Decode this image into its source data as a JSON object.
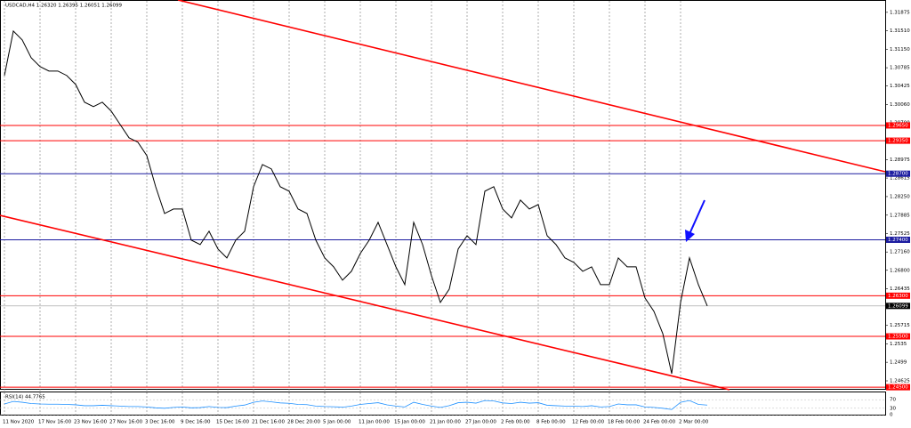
{
  "chart_data": {
    "type": "line",
    "title": "USDCAD,H4  1.26320 1.26395 1.26051 1.26099",
    "categories": [
      "11 Nov 2020",
      null,
      null,
      null,
      "17 Nov 16:00",
      null,
      null,
      null,
      "23 Nov 16:00",
      null,
      null,
      null,
      "27 Nov 16:00",
      null,
      null,
      null,
      "3 Dec 16:00",
      null,
      null,
      null,
      "9 Dec 16:00",
      null,
      null,
      null,
      "15 Dec 16:00",
      null,
      null,
      null,
      "21 Dec 16:00",
      null,
      null,
      null,
      "28 Dec 20:00",
      null,
      null,
      null,
      "5 Jan 00:00",
      null,
      null,
      null,
      "11 Jan 00:00",
      null,
      null,
      null,
      "15 Jan 00:00",
      null,
      null,
      null,
      "21 Jan 00:00",
      null,
      null,
      null,
      "27 Jan 00:00",
      null,
      null,
      null,
      "2 Feb 00:00",
      null,
      null,
      null,
      "8 Feb 00:00",
      null,
      null,
      null,
      "12 Feb 00:00",
      null,
      null,
      null,
      "18 Feb 00:00",
      null,
      null,
      null,
      "24 Feb 00:00",
      null,
      null,
      null,
      "2 Mar 00:00",
      null,
      null,
      null
    ],
    "series": [
      {
        "name": "USDCAD",
        "color": "#000000",
        "values": [
          1.30632,
          1.31507,
          1.31332,
          1.30982,
          1.30807,
          1.3072,
          1.3072,
          1.30632,
          1.30457,
          1.30107,
          1.30019,
          1.30107,
          1.29932,
          1.29669,
          1.29407,
          1.29319,
          1.29056,
          1.28444,
          1.27918,
          1.28006,
          1.28006,
          1.27393,
          1.27306,
          1.27568,
          1.27218,
          1.27043,
          1.27393,
          1.27568,
          1.28444,
          1.28881,
          1.28794,
          1.28444,
          1.28356,
          1.28006,
          1.27918,
          1.27393,
          1.27043,
          1.26868,
          1.26605,
          1.2678,
          1.27131,
          1.27393,
          1.27743,
          1.27306,
          1.26868,
          1.26518,
          1.27743,
          1.27306,
          1.26693,
          1.26168,
          1.2643,
          1.27218,
          1.27481,
          1.27306,
          1.28356,
          1.28444,
          1.28006,
          1.27831,
          1.28181,
          1.28006,
          1.28093,
          1.27481,
          1.27306,
          1.27043,
          1.26955,
          1.2678,
          1.26868,
          1.26518,
          1.26518,
          1.27043,
          1.26868,
          1.26868,
          1.26255,
          1.25993,
          1.25555,
          1.24767,
          1.26168,
          1.27043,
          1.26518,
          1.26099
        ]
      }
    ],
    "ylim": [
      1.2445,
      1.3203
    ],
    "yticks": [
      1.31875,
      {
        "value": 1.3151,
        "label": "1.31510"
      },
      {
        "value": 1.3115,
        "label": "1.31150"
      },
      1.30785,
      1.30425,
      {
        "value": 1.3006,
        "label": "1.30060"
      },
      {
        "value": 1.297,
        "label": "1.29700"
      },
      1.29335,
      1.28975,
      1.28615,
      {
        "value": 1.2825,
        "label": "1.28250"
      },
      1.27885,
      1.27525,
      {
        "value": 1.2716,
        "label": "1.27160"
      },
      {
        "value": 1.268,
        "label": "1.26800"
      },
      1.26435,
      1.25715,
      1.2535,
      1.2499,
      1.24625
    ],
    "levels": [
      {
        "value": 1.2965,
        "label": "1.29650",
        "color": "#ff0000"
      },
      {
        "value": 1.2935,
        "label": "1.29350",
        "color": "#ff0000"
      },
      {
        "value": 1.287,
        "label": "1.28700",
        "color": "#1c1ca0"
      },
      {
        "value": 1.274,
        "label": "1.27400",
        "color": "#1c1ca0"
      },
      {
        "value": 1.263,
        "label": "1.26300",
        "color": "#ff0000"
      },
      {
        "value": 1.255,
        "label": "1.25500",
        "color": "#ff0000"
      },
      {
        "value": 1.245,
        "label": "1.24500",
        "color": "#ff0000"
      }
    ],
    "current": {
      "value": 1.26099,
      "label": "1.26099",
      "color": "#000000"
    },
    "rsi": {
      "label": "RSI(14) 44.7765",
      "color": "#1e90ff",
      "ylim": [
        0,
        100
      ],
      "yticks": [
        70,
        30,
        0
      ],
      "values": [
        50,
        62,
        58,
        52,
        50,
        49,
        49,
        48,
        46,
        42,
        42,
        44,
        42,
        40,
        38,
        38,
        36,
        32,
        30,
        34,
        36,
        32,
        33,
        38,
        34,
        33,
        40,
        45,
        58,
        64,
        60,
        55,
        53,
        48,
        47,
        40,
        38,
        37,
        35,
        40,
        48,
        52,
        56,
        46,
        40,
        36,
        58,
        48,
        40,
        34,
        42,
        56,
        58,
        54,
        66,
        64,
        55,
        52,
        58,
        54,
        56,
        44,
        42,
        40,
        40,
        38,
        42,
        36,
        38,
        50,
        46,
        46,
        36,
        34,
        30,
        24,
        58,
        66,
        48,
        44.7765
      ]
    }
  }
}
